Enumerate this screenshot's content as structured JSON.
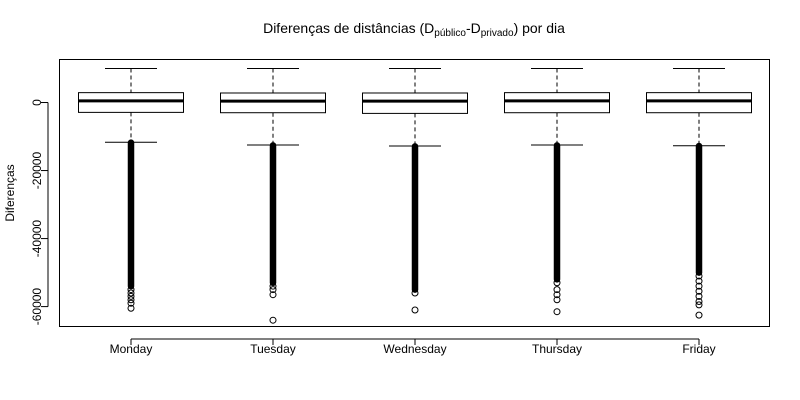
{
  "chart_data": {
    "type": "boxplot",
    "title": {
      "prefix": "Diferenças de distâncias (D",
      "sub1": "público",
      "mid": "-D",
      "sub2": "privado",
      "suffix": ") por dia"
    },
    "xlabel": "",
    "ylabel": "Diferenças",
    "ylim": [
      -66000,
      12500
    ],
    "yticks": [
      0,
      -20000,
      -40000,
      -60000
    ],
    "ytick_labels": [
      "0",
      "-20000",
      "-40000",
      "-60000"
    ],
    "categories": [
      "Monday",
      "Tuesday",
      "Wednesday",
      "Thursday",
      "Friday"
    ],
    "boxes": [
      {
        "whisker_low": -11700,
        "q1": -2900,
        "median": 500,
        "q3": 2900,
        "whisker_high": 10000,
        "outlier_dense_top": -11800,
        "outlier_dense_bottom": -54000,
        "outliers_sparse": [
          -55000,
          -56000,
          -57000,
          -58000,
          -59000,
          -60500
        ]
      },
      {
        "whisker_low": -12500,
        "q1": -3000,
        "median": 400,
        "q3": 2800,
        "whisker_high": 10000,
        "outlier_dense_top": -12600,
        "outlier_dense_bottom": -53000,
        "outliers_sparse": [
          -54000,
          -55000,
          -56500,
          -64000
        ]
      },
      {
        "whisker_low": -12800,
        "q1": -3200,
        "median": 400,
        "q3": 2800,
        "whisker_high": 10000,
        "outlier_dense_top": -12900,
        "outlier_dense_bottom": -55000,
        "outliers_sparse": [
          -56000,
          -61000
        ]
      },
      {
        "whisker_low": -12500,
        "q1": -3000,
        "median": 500,
        "q3": 2900,
        "whisker_high": 10000,
        "outlier_dense_top": -12600,
        "outlier_dense_bottom": -52000,
        "outliers_sparse": [
          -53000,
          -55000,
          -56500,
          -58000,
          -61500
        ]
      },
      {
        "whisker_low": -12700,
        "q1": -3000,
        "median": 500,
        "q3": 2900,
        "whisker_high": 10000,
        "outlier_dense_top": -12800,
        "outlier_dense_bottom": -50000,
        "outliers_sparse": [
          -51000,
          -52500,
          -54000,
          -55500,
          -57000,
          -58500,
          -59500,
          -62500
        ]
      }
    ]
  }
}
